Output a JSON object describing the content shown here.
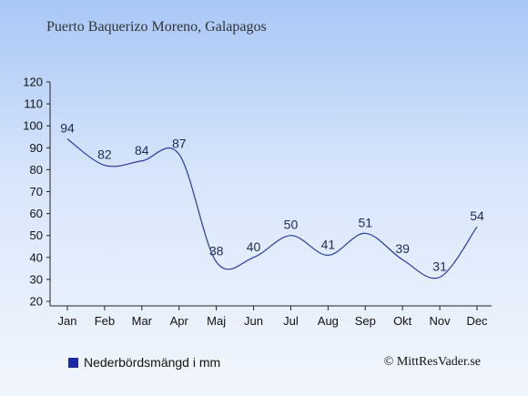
{
  "chart_data": {
    "type": "line",
    "title": "Puerto Baquerizo Moreno, Galapagos",
    "categories": [
      "Jan",
      "Feb",
      "Mar",
      "Apr",
      "Maj",
      "Jun",
      "Jul",
      "Aug",
      "Sep",
      "Okt",
      "Nov",
      "Dec"
    ],
    "series": [
      {
        "name": "Nederbördsmängd i mm",
        "values": [
          94,
          82,
          84,
          87,
          38,
          40,
          50,
          41,
          51,
          39,
          31,
          54
        ]
      }
    ],
    "ylim": [
      20,
      120
    ],
    "yticks": [
      20,
      30,
      40,
      50,
      60,
      70,
      80,
      90,
      100,
      110,
      120
    ],
    "grid": false,
    "legend": "bottom-left",
    "colors": {
      "line": "#2b3a9e",
      "legend_swatch": "#1a2aa6",
      "axis": "#222222"
    }
  },
  "credit": "© MittResVader.se"
}
